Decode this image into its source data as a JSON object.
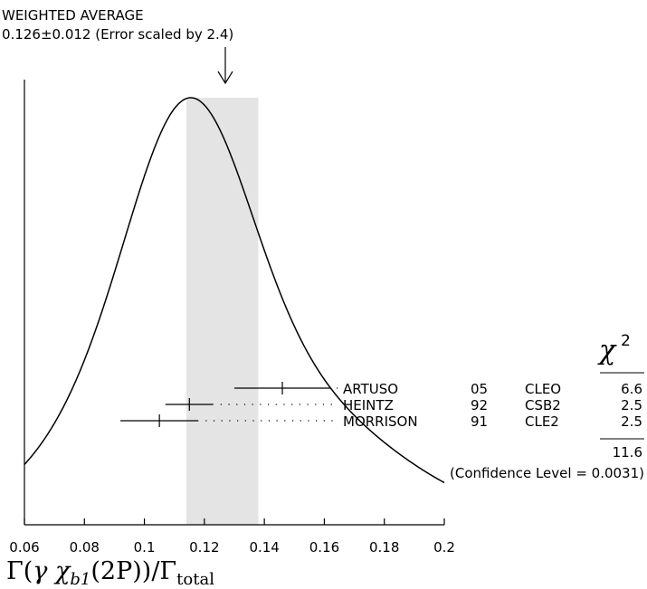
{
  "chart_data": {
    "type": "ideogram",
    "header": {
      "title": "WEIGHTED AVERAGE",
      "value_line": "0.126±0.012 (Error scaled by 2.4)"
    },
    "average": {
      "value": 0.126,
      "error": 0.012
    },
    "xlim": [
      0.06,
      0.2
    ],
    "x_ticks": [
      "0.06",
      "0.08",
      "0.1",
      "0.12",
      "0.14",
      "0.16",
      "0.18",
      "0.2"
    ],
    "x_tick_values": [
      0.06,
      0.08,
      0.1,
      0.12,
      0.14,
      0.16,
      0.18,
      0.2
    ],
    "xlabel": {
      "gamma": "Γ",
      "open": "(",
      "particle": "γ χ",
      "sub": "b1",
      "state": "(2P)",
      "close": ")",
      "slash": "/Γ",
      "sub2": "total"
    },
    "chi2_header": "χ",
    "chi2_sup": "2",
    "measurements": [
      {
        "author": "ARTUSO",
        "year": "05",
        "experiment": "CLEO",
        "chi2": "6.6",
        "value": 0.146,
        "err_low": 0.016,
        "err_high": 0.016
      },
      {
        "author": "HEINTZ",
        "year": "92",
        "experiment": "CSB2",
        "chi2": "2.5",
        "value": 0.115,
        "err_low": 0.008,
        "err_high": 0.008
      },
      {
        "author": "MORRISON",
        "year": "91",
        "experiment": "CLE2",
        "chi2": "2.5",
        "value": 0.105,
        "err_low": 0.013,
        "err_high": 0.013
      }
    ],
    "chi2_total": "11.6",
    "confidence_level": "(Confidence Level = 0.0031)",
    "colors": {
      "band": "#e4e4e4",
      "line": "#000000"
    }
  }
}
